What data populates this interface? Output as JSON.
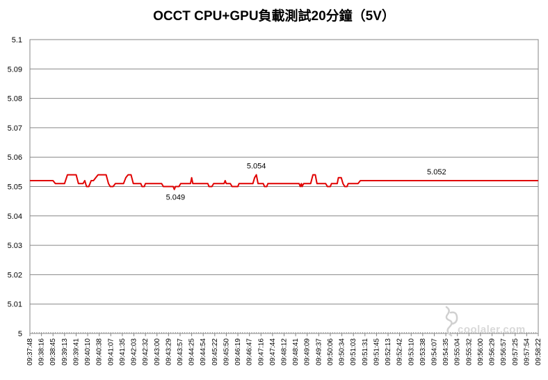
{
  "chart_data": {
    "type": "line",
    "title": "OCCT CPU+GPU負載測試20分鐘（5V）",
    "xlabel": "",
    "ylabel": "",
    "ylim": [
      5,
      5.1
    ],
    "yticks": [
      "5",
      "5.01",
      "5.02",
      "5.03",
      "5.04",
      "5.05",
      "5.06",
      "5.07",
      "5.08",
      "5.09",
      "5.1"
    ],
    "xticks": [
      "09:37:48",
      "09:38:16",
      "09:38:45",
      "09:39:13",
      "09:39:41",
      "09:40:10",
      "09:40:38",
      "09:41:07",
      "09:41:35",
      "09:42:03",
      "09:42:32",
      "09:43:00",
      "09:43:29",
      "09:43:57",
      "09:44:25",
      "09:44:54",
      "09:45:22",
      "09:45:50",
      "09:46:19",
      "09:46:47",
      "09:47:16",
      "09:47:44",
      "09:48:12",
      "09:48:41",
      "09:49:09",
      "09:49:37",
      "09:50:06",
      "09:50:34",
      "09:51:03",
      "09:51:31",
      "09:51:45",
      "09:52:13",
      "09:52:42",
      "09:53:10",
      "09:53:38",
      "09:54:07",
      "09:54:35",
      "09:55:04",
      "09:55:32",
      "09:56:00",
      "09:56:29",
      "09:56:57",
      "09:57:25",
      "09:57:54",
      "09:58:22"
    ],
    "grid": "horizontal",
    "legend": "none",
    "series_color": "#e00000",
    "series": [
      {
        "name": "",
        "points": [
          [
            0,
            5.052
          ],
          [
            2,
            5.052
          ],
          [
            2.2,
            5.051
          ],
          [
            3,
            5.051
          ],
          [
            3.25,
            5.054
          ],
          [
            4,
            5.054
          ],
          [
            4.2,
            5.051
          ],
          [
            4.6,
            5.051
          ],
          [
            4.75,
            5.052
          ],
          [
            4.9,
            5.05
          ],
          [
            5.1,
            5.05
          ],
          [
            5.3,
            5.052
          ],
          [
            5.5,
            5.052
          ],
          [
            5.7,
            5.053
          ],
          [
            5.9,
            5.054
          ],
          [
            6.6,
            5.054
          ],
          [
            6.8,
            5.051
          ],
          [
            6.95,
            5.05
          ],
          [
            7.2,
            5.05
          ],
          [
            7.4,
            5.051
          ],
          [
            8.1,
            5.051
          ],
          [
            8.3,
            5.053
          ],
          [
            8.5,
            5.054
          ],
          [
            8.75,
            5.054
          ],
          [
            8.95,
            5.051
          ],
          [
            9.6,
            5.051
          ],
          [
            9.7,
            5.05
          ],
          [
            9.9,
            5.05
          ],
          [
            10.0,
            5.051
          ],
          [
            11.4,
            5.051
          ],
          [
            11.55,
            5.05
          ],
          [
            12.4,
            5.05
          ],
          [
            12.5,
            5.049
          ],
          [
            12.6,
            5.05
          ],
          [
            12.9,
            5.05
          ],
          [
            13.05,
            5.051
          ],
          [
            13.9,
            5.051
          ],
          [
            14.0,
            5.053
          ],
          [
            14.1,
            5.051
          ],
          [
            15.4,
            5.051
          ],
          [
            15.5,
            5.05
          ],
          [
            15.75,
            5.05
          ],
          [
            15.9,
            5.051
          ],
          [
            16.8,
            5.051
          ],
          [
            16.9,
            5.052
          ],
          [
            17.0,
            5.051
          ],
          [
            17.35,
            5.051
          ],
          [
            17.5,
            5.05
          ],
          [
            18.0,
            5.05
          ],
          [
            18.1,
            5.051
          ],
          [
            19.3,
            5.051
          ],
          [
            19.45,
            5.053
          ],
          [
            19.6,
            5.054
          ],
          [
            19.75,
            5.051
          ],
          [
            20.2,
            5.051
          ],
          [
            20.3,
            5.05
          ],
          [
            20.5,
            5.05
          ],
          [
            20.6,
            5.051
          ],
          [
            23.3,
            5.051
          ],
          [
            23.4,
            5.05
          ],
          [
            23.5,
            5.051
          ],
          [
            23.55,
            5.05
          ],
          [
            23.7,
            5.051
          ],
          [
            24.3,
            5.051
          ],
          [
            24.5,
            5.054
          ],
          [
            24.7,
            5.054
          ],
          [
            24.85,
            5.051
          ],
          [
            25.6,
            5.051
          ],
          [
            25.75,
            5.05
          ],
          [
            26.0,
            5.05
          ],
          [
            26.1,
            5.051
          ],
          [
            26.6,
            5.051
          ],
          [
            26.7,
            5.053
          ],
          [
            26.95,
            5.053
          ],
          [
            27.1,
            5.051
          ],
          [
            27.25,
            5.05
          ],
          [
            27.45,
            5.05
          ],
          [
            27.55,
            5.051
          ],
          [
            28.4,
            5.051
          ],
          [
            28.6,
            5.052
          ],
          [
            44,
            5.052
          ]
        ]
      }
    ],
    "annotations": [
      {
        "text": "5.049",
        "x": 12.6,
        "y": 5.049
      },
      {
        "text": "5.054",
        "x": 19.6,
        "y": 5.054
      },
      {
        "text": "5.052",
        "x": 35.2,
        "y": 5.052
      }
    ]
  },
  "watermark": {
    "text": "coolaler.com"
  }
}
